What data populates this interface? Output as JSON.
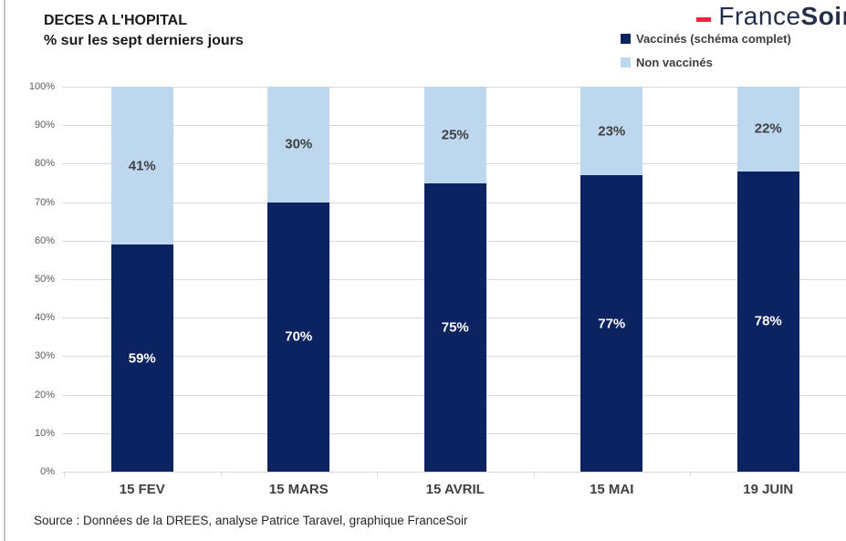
{
  "header": {
    "title_line1": "DECES A L'HOPITAL",
    "title_line2": "% sur les sept derniers jours",
    "logo": {
      "brand_regular": "France",
      "brand_bold": "Soir"
    }
  },
  "legend": [
    {
      "label": "Vaccinés (schéma complet)",
      "color": "#0c2361"
    },
    {
      "label": "Non  vaccinés",
      "color": "#bdd7ee"
    }
  ],
  "chart_data": {
    "type": "bar",
    "stacked": true,
    "title": "DECES A L'HOPITAL",
    "subtitle": "% sur les sept derniers jours",
    "categories": [
      "15 FEV",
      "15 MARS",
      "15 AVRIL",
      "15 MAI",
      "19 JUIN"
    ],
    "series": [
      {
        "name": "Vaccinés (schéma complet)",
        "color": "#0c2361",
        "label_color": "#ffffff",
        "values": [
          59,
          70,
          75,
          77,
          78
        ],
        "labels": [
          "59%",
          "70%",
          "75%",
          "77%",
          "78%"
        ]
      },
      {
        "name": "Non vaccinés",
        "color": "#bdd7ee",
        "label_color": "#404040",
        "values": [
          41,
          30,
          25,
          23,
          22
        ],
        "labels": [
          "41%",
          "30%",
          "25%",
          "23%",
          "22%"
        ]
      }
    ],
    "y_axis": {
      "min": 0,
      "max": 100,
      "step": 10,
      "ticks": [
        "0%",
        "10%",
        "20%",
        "30%",
        "40%",
        "50%",
        "60%",
        "70%",
        "80%",
        "90%",
        "100%"
      ]
    },
    "grid": true,
    "legend_position": "top-right"
  },
  "footer": {
    "source": "Source : Données de la DREES, analyse Patrice Taravel, graphique FranceSoir"
  },
  "colors": {
    "navy": "#0c2361",
    "light_blue": "#bdd7ee",
    "grid": "#d9d9d9",
    "axis_text": "#595959",
    "label_dark": "#404040",
    "title": "#1a1a1a",
    "logo_text": "#232f4b",
    "logo_accent": "#e8283c",
    "source_text": "#262626",
    "border": "#c4c4c4"
  }
}
